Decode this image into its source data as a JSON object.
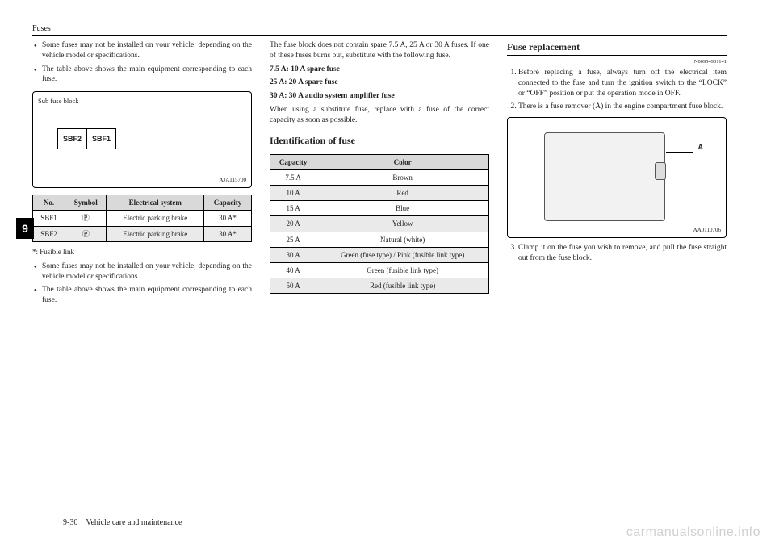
{
  "running_head": "Fuses",
  "tab_number": "9",
  "page_footer": "9-30 Vehicle care and maintenance",
  "watermark": "carmanualsonline.info",
  "col1": {
    "bullets_top": [
      "Some fuses may not be installed on your vehicle, depending on the vehicle model or specifications.",
      "The table above shows the main equipment corresponding to each fuse."
    ],
    "fig_caption": "Sub fuse block",
    "sbf_labels": [
      "SBF2",
      "SBF1"
    ],
    "fig_code": "AJA115700",
    "table": {
      "headers": [
        "No.",
        "Sym­bol",
        "Electrical sys­tem",
        "Capaci­ty"
      ],
      "rows": [
        [
          "SBF1",
          "Ⓟ",
          "Electric parking brake",
          "30 A*"
        ],
        [
          "SBF2",
          "Ⓟ",
          "Electric parking brake",
          "30 A*"
        ]
      ]
    },
    "footnote": "*: Fusible link",
    "bullets_bottom": [
      "Some fuses may not be installed on your vehicle, depending on the vehicle model or specifications.",
      "The table above shows the main equipment corresponding to each fuse."
    ]
  },
  "col2": {
    "para1": "The fuse block does not contain spare 7.5 A, 25 A or 30 A fuses. If one of these fuses burns out, substitute with the following fuse.",
    "lines": [
      "7.5 A: 10 A spare fuse",
      "25 A: 20 A spare fuse",
      "30 A: 30 A audio system amplifier fuse"
    ],
    "para2": "When using a substitute fuse, replace with a fuse of the correct capacity as soon as possible.",
    "section_title": "Identification of fuse",
    "color_table": {
      "headers": [
        "Capacity",
        "Color"
      ],
      "rows": [
        {
          "cap": "7.5 A",
          "color": "Brown",
          "shade": false
        },
        {
          "cap": "10 A",
          "color": "Red",
          "shade": true
        },
        {
          "cap": "15 A",
          "color": "Blue",
          "shade": false
        },
        {
          "cap": "20 A",
          "color": "Yellow",
          "shade": true
        },
        {
          "cap": "25 A",
          "color": "Natural (white)",
          "shade": false
        },
        {
          "cap": "30 A",
          "color": "Green (fuse type) / Pink (fusible link type)",
          "shade": true
        },
        {
          "cap": "40 A",
          "color": "Green (fusible link type)",
          "shade": false
        },
        {
          "cap": "50 A",
          "color": "Red (fusible link type)",
          "shade": true
        }
      ]
    }
  },
  "col3": {
    "section_title": "Fuse replacement",
    "code": "N00954901141",
    "steps_top": [
      "Before replacing a fuse, always turn off the electrical item connected to the fuse and turn the ignition switch to the “LOCK” or “OFF” position or put the operation mode in OFF.",
      "There is a fuse remover (A) in the engine compartment fuse block."
    ],
    "fig_label": "A",
    "fig_code": "AA0110706",
    "steps_bottom": [
      "Clamp it on the fuse you wish to remove, and pull the fuse straight out from the fuse block."
    ]
  }
}
